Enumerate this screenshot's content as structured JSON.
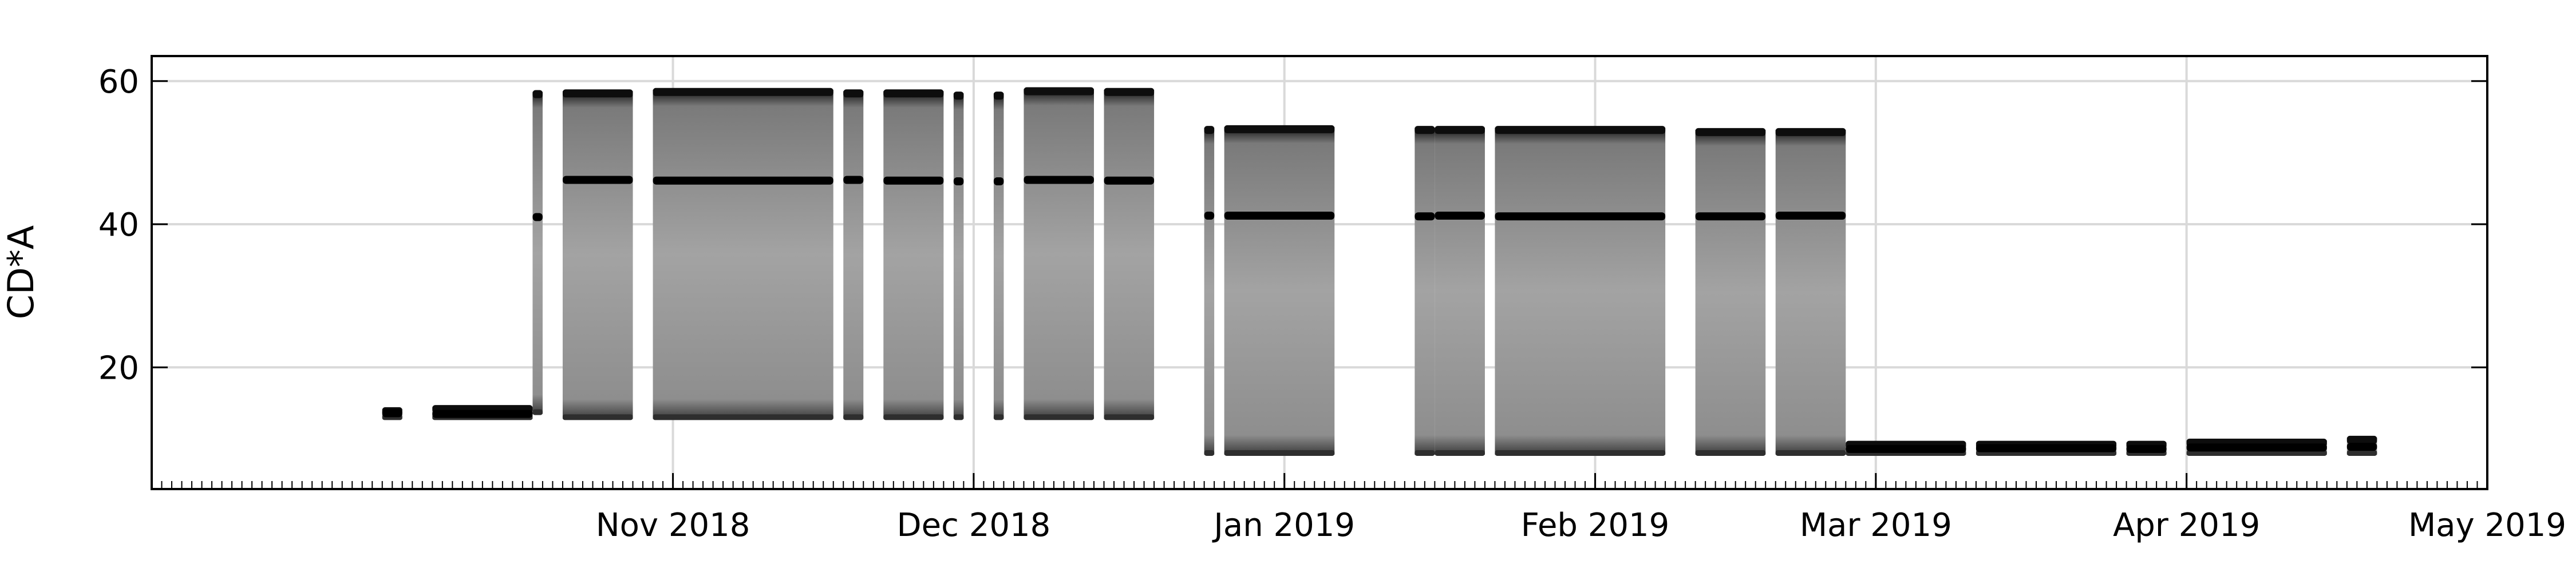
{
  "chart_data": {
    "type": "scatter",
    "title": "",
    "xlabel": "",
    "ylabel": "CD*A",
    "xlim": [
      "2018-09-10",
      "2019-05-01"
    ],
    "ylim": [
      3,
      63.5
    ],
    "grid": true,
    "x_ticks": [
      {
        "date": "2018-11-01",
        "label": "Nov 2018"
      },
      {
        "date": "2018-12-01",
        "label": "Dec 2018"
      },
      {
        "date": "2019-01-01",
        "label": "Jan 2019"
      },
      {
        "date": "2019-02-01",
        "label": "Feb 2019"
      },
      {
        "date": "2019-03-01",
        "label": "Mar 2019"
      },
      {
        "date": "2019-04-01",
        "label": "Apr 2019"
      },
      {
        "date": "2019-05-01",
        "label": "May 2019"
      }
    ],
    "y_ticks": [
      20,
      40,
      60
    ],
    "colors": {
      "spread": "#7a7a7a",
      "median": "#000000"
    },
    "series": [
      {
        "segments": [
          {
            "start": "2018-10-03",
            "end": "2018-10-05",
            "low": 12.8,
            "high": 14.2,
            "median": 13.6
          },
          {
            "start": "2018-10-08",
            "end": "2018-10-18",
            "low": 12.8,
            "high": 14.5,
            "median": 13.5
          },
          {
            "start": "2018-10-18",
            "end": "2018-10-19",
            "low": 13.5,
            "high": 58.5,
            "median": 41
          },
          {
            "start": "2018-10-21",
            "end": "2018-10-28",
            "low": 12.8,
            "high": 58.6,
            "median": 46.2
          },
          {
            "start": "2018-10-30",
            "end": "2018-11-17",
            "low": 12.8,
            "high": 58.8,
            "median": 46.1
          },
          {
            "start": "2018-11-18",
            "end": "2018-11-20",
            "low": 12.8,
            "high": 58.6,
            "median": 46.2
          },
          {
            "start": "2018-11-22",
            "end": "2018-11-28",
            "low": 12.8,
            "high": 58.6,
            "median": 46.1
          },
          {
            "start": "2018-11-29",
            "end": "2018-11-30",
            "low": 12.8,
            "high": 58.3,
            "median": 46.0
          },
          {
            "start": "2018-12-03",
            "end": "2018-12-04",
            "low": 12.8,
            "high": 58.3,
            "median": 46.0
          },
          {
            "start": "2018-12-06",
            "end": "2018-12-13",
            "low": 12.8,
            "high": 58.9,
            "median": 46.2
          },
          {
            "start": "2018-12-14",
            "end": "2018-12-19",
            "low": 12.8,
            "high": 58.8,
            "median": 46.1
          },
          {
            "start": "2018-12-24",
            "end": "2018-12-25",
            "low": 7.8,
            "high": 53.5,
            "median": 41.2
          },
          {
            "start": "2018-12-26",
            "end": "2019-01-06",
            "low": 7.8,
            "high": 53.6,
            "median": 41.2
          },
          {
            "start": "2019-01-14",
            "end": "2019-01-16",
            "low": 7.8,
            "high": 53.5,
            "median": 41.1
          },
          {
            "start": "2019-01-16",
            "end": "2019-01-21",
            "low": 7.8,
            "high": 53.5,
            "median": 41.2
          },
          {
            "start": "2019-01-22",
            "end": "2019-02-08",
            "low": 7.8,
            "high": 53.5,
            "median": 41.1
          },
          {
            "start": "2019-02-11",
            "end": "2019-02-18",
            "low": 7.8,
            "high": 53.2,
            "median": 41.1
          },
          {
            "start": "2019-02-19",
            "end": "2019-02-26",
            "low": 7.8,
            "high": 53.2,
            "median": 41.2
          },
          {
            "start": "2019-02-26",
            "end": "2019-03-10",
            "low": 7.8,
            "high": 9.5,
            "median": 8.6
          },
          {
            "start": "2019-03-11",
            "end": "2019-03-25",
            "low": 7.8,
            "high": 9.5,
            "median": 8.7
          },
          {
            "start": "2019-03-26",
            "end": "2019-03-30",
            "low": 7.8,
            "high": 9.5,
            "median": 8.6
          },
          {
            "start": "2019-04-01",
            "end": "2019-04-15",
            "low": 7.8,
            "high": 9.8,
            "median": 8.8
          },
          {
            "start": "2019-04-17",
            "end": "2019-04-20",
            "low": 7.8,
            "high": 10.2,
            "median": 8.9
          }
        ]
      }
    ]
  }
}
